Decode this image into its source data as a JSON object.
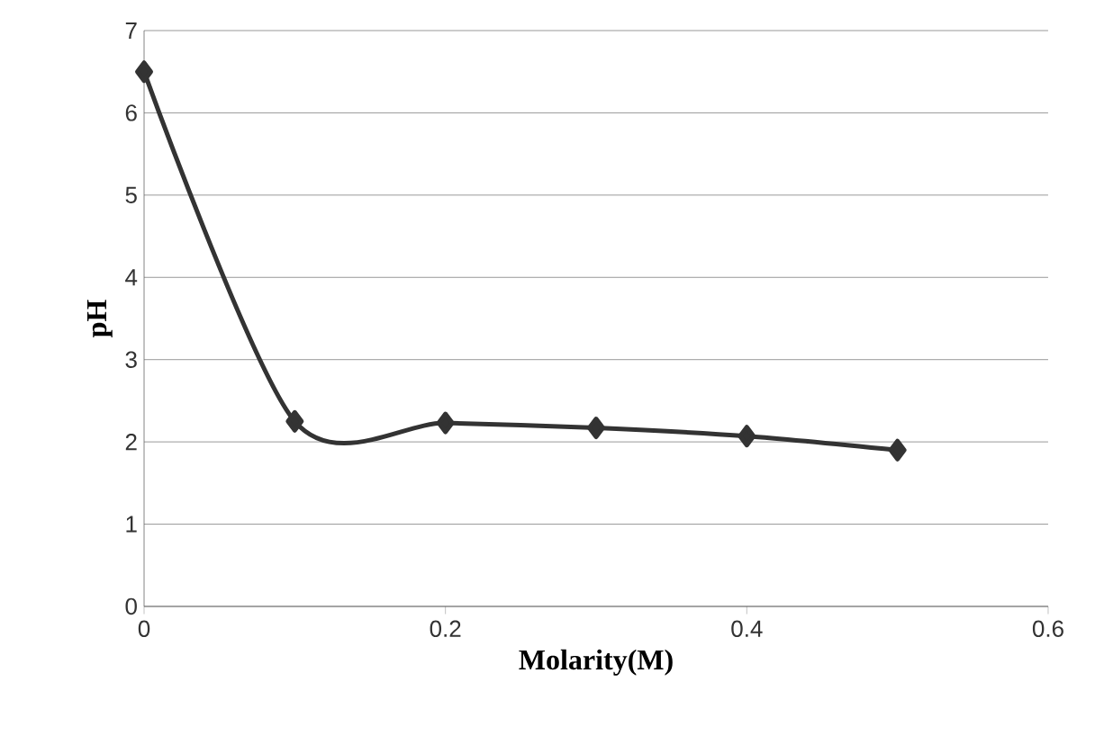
{
  "chart_data": {
    "type": "line",
    "xlabel": "Molarity(M)",
    "ylabel": "pH",
    "x": [
      0,
      0.1,
      0.2,
      0.3,
      0.4,
      0.5
    ],
    "series": [
      {
        "color": "#333333",
        "values": [
          6.5,
          2.25,
          2.23,
          2.17,
          2.07,
          1.9
        ]
      }
    ],
    "xlim": [
      0,
      0.6
    ],
    "ylim": [
      0,
      7
    ],
    "xticks": [
      0,
      0.2,
      0.4,
      0.6
    ],
    "yticks": [
      0,
      1,
      2,
      3,
      4,
      5,
      6,
      7
    ],
    "grid": "y",
    "marker": "diamond",
    "line_style": "solid"
  }
}
